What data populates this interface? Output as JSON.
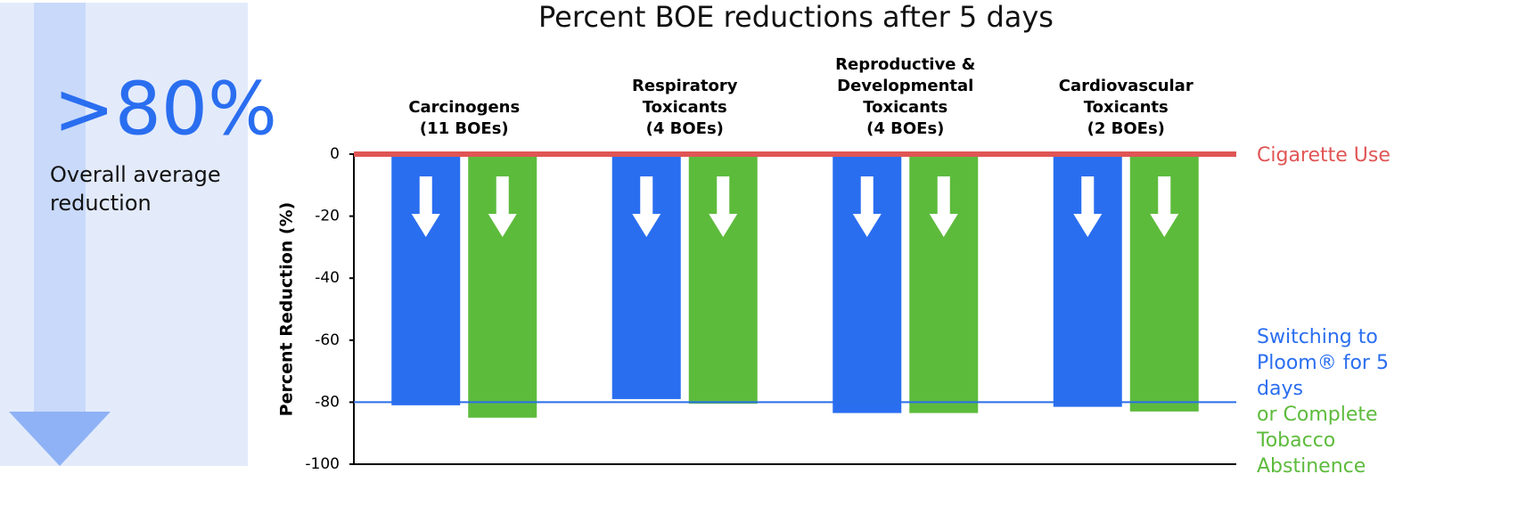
{
  "side_panel": {
    "stat": ">80%",
    "caption": "Overall average reduction"
  },
  "chart_data": {
    "type": "bar",
    "title": "Percent BOE reductions after 5 days",
    "ylabel": "Percent Reduction (%)",
    "categories": [
      "Carcinogens\n(11 BOEs)",
      "Respiratory\nToxicants\n(4 BOEs)",
      "Reproductive &\nDevelopmental\nToxicants\n(4 BOEs)",
      "Cardiovascular\nToxicants\n(2 BOEs)"
    ],
    "series": [
      {
        "name": "Switching to Ploom® for 5 days",
        "color": "#2a6ef0",
        "values": [
          -81,
          -79,
          -83.5,
          -81.5
        ]
      },
      {
        "name": "or Complete Tobacco Abstinence",
        "color": "#5dbb3c",
        "values": [
          -85,
          -80.5,
          -83.5,
          -83
        ]
      }
    ],
    "reference_lines": [
      {
        "value": 0,
        "label": "Cigarette Use",
        "color": "#e05555"
      },
      {
        "value": -80,
        "color": "#2a6ee8"
      }
    ],
    "ylim": [
      -100,
      0
    ],
    "yticks": [
      0,
      -20,
      -40,
      -60,
      -80,
      -100
    ]
  }
}
